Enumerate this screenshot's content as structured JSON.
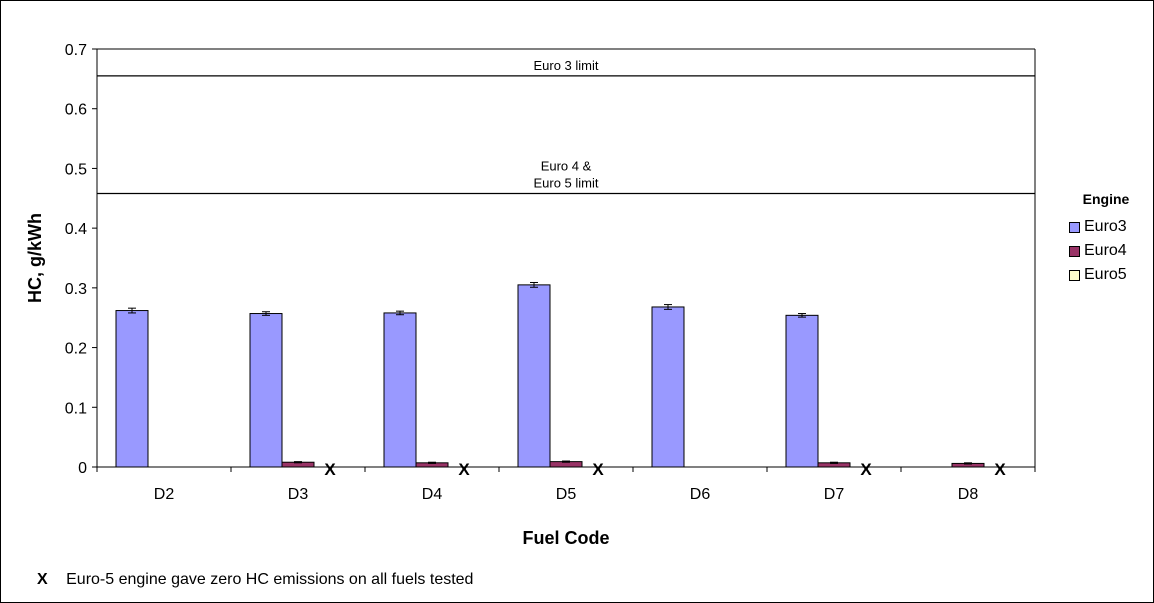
{
  "chart_data": {
    "type": "bar",
    "xlabel": "Fuel Code",
    "ylabel": "HC, g/kWh",
    "ylim": [
      0,
      0.7
    ],
    "yticks": [
      "0",
      "0.1",
      "0.2",
      "0.3",
      "0.4",
      "0.5",
      "0.6",
      "0.7"
    ],
    "categories": [
      "D2",
      "D3",
      "D4",
      "D5",
      "D6",
      "D7",
      "D8"
    ],
    "series": [
      {
        "name": "Euro3",
        "color": "#9999ff",
        "values": [
          0.262,
          0.257,
          0.258,
          0.305,
          0.268,
          0.254,
          0
        ],
        "error": [
          0.004,
          0.003,
          0.003,
          0.004,
          0.004,
          0.003,
          0
        ]
      },
      {
        "name": "Euro4",
        "color": "#993366",
        "values": [
          0,
          0.008,
          0.007,
          0.009,
          0,
          0.007,
          0.006
        ],
        "error": [
          0,
          0.001,
          0.001,
          0.001,
          0,
          0.001,
          0.001
        ]
      },
      {
        "name": "Euro5",
        "color": "#ffffcc",
        "values": [
          0,
          0,
          0,
          0,
          0,
          0,
          0
        ]
      }
    ],
    "zero_markers": {
      "symbol": "X",
      "categories": [
        "D3",
        "D4",
        "D5",
        "D7",
        "D8"
      ]
    },
    "reference_lines": [
      {
        "value": 0.655,
        "label_lines": [
          "Euro 3 limit"
        ]
      },
      {
        "value": 0.458,
        "label_lines": [
          "Euro 4 &",
          "Euro 5 limit"
        ]
      }
    ],
    "legend": {
      "title": "Engine",
      "position": "right"
    }
  },
  "footnote": {
    "marker": "X",
    "text": "Euro-5 engine gave zero HC emissions on all fuels tested"
  }
}
